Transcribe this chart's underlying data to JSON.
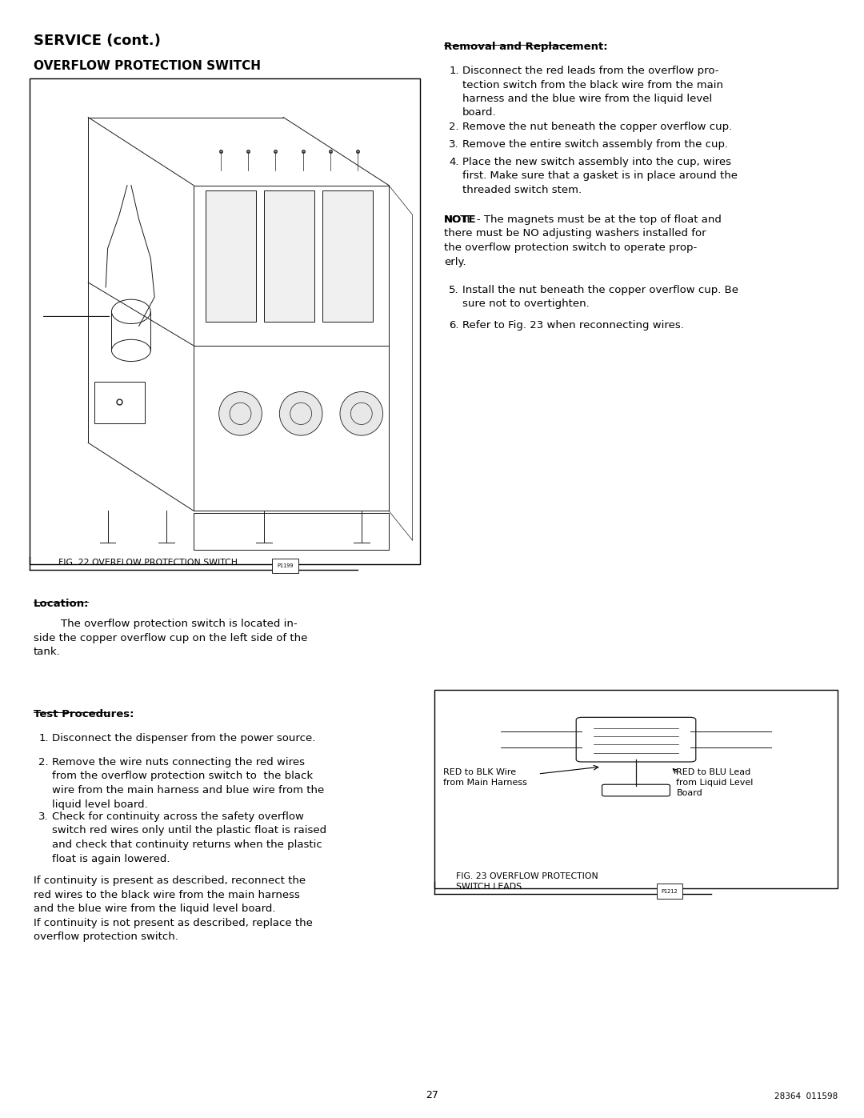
{
  "page_width": 10.8,
  "page_height": 13.97,
  "background_color": "#ffffff",
  "text_color": "#000000",
  "title_bold": "SERVICE (cont.)",
  "subtitle_bold": "OVERFLOW PROTECTION SWITCH",
  "fig22_caption": "FIG. 22 OVERFLOW PROTECTION SWITCH",
  "fig22_part": "P1199",
  "fig23_part": "P1212",
  "location_header": "Location:",
  "test_header": "Test Procedures:",
  "test_items": [
    "Disconnect the dispenser from the power source.",
    "Remove the wire nuts connecting the red wires\nfrom the overflow protection switch to  the black\nwire from the main harness and blue wire from the\nliquid level board.",
    "Check for continuity across the safety overflow\nswitch red wires only until the plastic float is raised\nand check that continuity returns when the plastic\nfloat is again lowered."
  ],
  "continuity_text": "If continuity is present as described, reconnect the\nred wires to the black wire from the main harness\nand the blue wire from the liquid level board.\nIf continuity is not present as described, replace the\noverflow protection switch.",
  "removal_header": "Removal and Replacement:",
  "removal_items": [
    "Disconnect the red leads from the overflow pro-\ntection switch from the black wire from the main\nharness and the blue wire from the liquid level\nboard.",
    "Remove the nut beneath the copper overflow cup.",
    "Remove the entire switch assembly from the cup.",
    "Place the new switch assembly into the cup, wires\nfirst. Make sure that a gasket is in place around the\nthreaded switch stem."
  ],
  "removal_items_5_6": [
    "Install the nut beneath the copper overflow cup. Be\nsure not to overtighten.",
    "Refer to Fig. 23 when reconnecting wires."
  ],
  "fig23_label_left": "RED to BLK Wire\nfrom Main Harness",
  "fig23_label_right": "RED to BLU Lead\nfrom Liquid Level\nBoard",
  "page_number": "27",
  "doc_number": "28364  011598",
  "font_size_body": 9.5,
  "font_size_title": 13,
  "font_size_subtitle": 11
}
